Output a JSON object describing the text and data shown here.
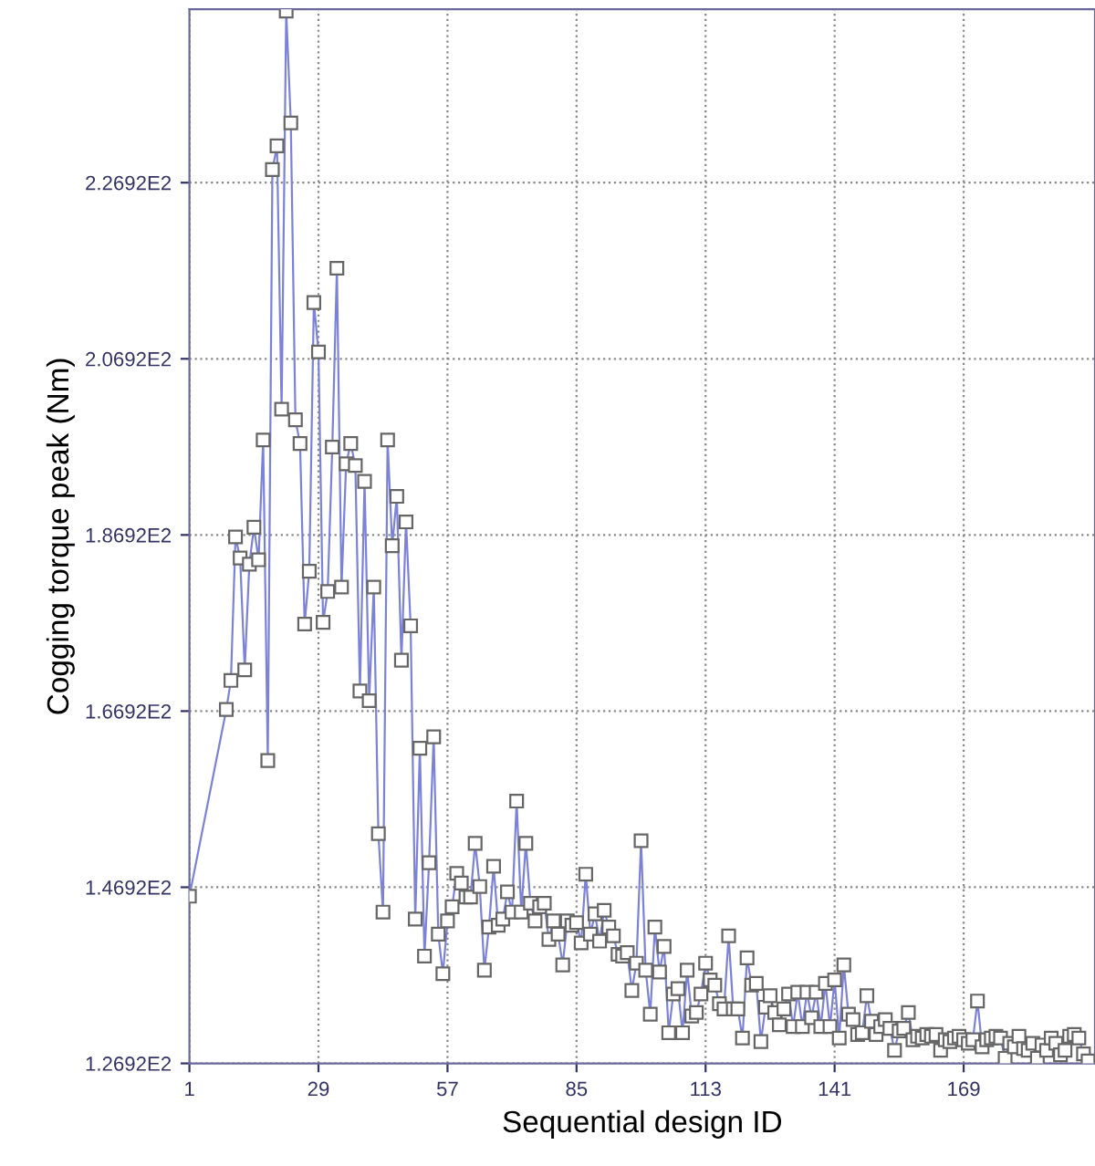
{
  "chart_data": {
    "type": "line",
    "xlabel": "Sequential design ID",
    "ylabel": "Cogging torque peak (Nm)",
    "xlim": [
      1,
      197.5
    ],
    "ylim": [
      126.92,
      246.6
    ],
    "xticks": [
      1,
      29,
      57,
      85,
      113,
      141,
      169
    ],
    "yticks": [
      {
        "value": 126.92,
        "label": "1.2692E2"
      },
      {
        "value": 146.92,
        "label": "1.4692E2"
      },
      {
        "value": 166.92,
        "label": "1.6692E2"
      },
      {
        "value": 186.92,
        "label": "1.8692E2"
      },
      {
        "value": 206.92,
        "label": "2.0692E2"
      },
      {
        "value": 226.92,
        "label": "2.2692E2"
      }
    ],
    "grid": true,
    "marker": "square",
    "line_style": "solid",
    "series": [
      {
        "color": "#7c82d8",
        "x": [
          1,
          9,
          10,
          11,
          12,
          13,
          14,
          15,
          16,
          17,
          18,
          19,
          20,
          21,
          22,
          23,
          24,
          25,
          26,
          27,
          28,
          29,
          30,
          31,
          32,
          33,
          34,
          35,
          36,
          37,
          38,
          39,
          40,
          41,
          42,
          43,
          44,
          45,
          46,
          47,
          48,
          49,
          50,
          51,
          52,
          53,
          54,
          55,
          56,
          57,
          58,
          59,
          60,
          61,
          62,
          63,
          64,
          65,
          66,
          67,
          68,
          69,
          70,
          71,
          72,
          73,
          74,
          75,
          76,
          77,
          78,
          79,
          80,
          81,
          82,
          83,
          84,
          85,
          86,
          87,
          88,
          89,
          90,
          91,
          92,
          93,
          94,
          95,
          96,
          97,
          98,
          99,
          100,
          101,
          102,
          103,
          104,
          105,
          106,
          107,
          108,
          109,
          110,
          111,
          112,
          113,
          114,
          115,
          116,
          117,
          118,
          119,
          120,
          121,
          122,
          123,
          124,
          125,
          126,
          127,
          128,
          129,
          130,
          131,
          132,
          133,
          134,
          135,
          136,
          137,
          138,
          139,
          140,
          141,
          142,
          143,
          144,
          145,
          146,
          147,
          148,
          149,
          150,
          151,
          152,
          153,
          154,
          155,
          156,
          157,
          158,
          159,
          160,
          161,
          162,
          163,
          164,
          165,
          166,
          167,
          168,
          169,
          170,
          171,
          172,
          173,
          174,
          175,
          176,
          177,
          178,
          179,
          180,
          181,
          182,
          183,
          184,
          185,
          186,
          187,
          188,
          189,
          190,
          191,
          192,
          193,
          194,
          195,
          196
        ],
        "values": [
          145.9,
          167.1,
          170.4,
          186.7,
          184.3,
          171.6,
          183.6,
          187.8,
          184.1,
          197.7,
          161.3,
          228.4,
          231.1,
          201.2,
          246.4,
          233.7,
          200,
          197.3,
          176.8,
          182.8,
          213.3,
          207.7,
          177,
          180.5,
          196.9,
          217.2,
          181,
          195,
          197.3,
          194.8,
          169.2,
          193,
          168.1,
          181,
          153,
          144.1,
          197.7,
          185.7,
          191.3,
          172.7,
          188.4,
          176.6,
          143.3,
          162.7,
          139.1,
          149.7,
          164,
          141.6,
          137.1,
          143.1,
          144.7,
          148.5,
          147.4,
          145.8,
          145.8,
          151.9,
          147,
          137.5,
          142.4,
          149.3,
          142.6,
          143.3,
          146.4,
          144.1,
          156.7,
          144.1,
          151.9,
          145.1,
          143.1,
          144.7,
          145.1,
          141,
          143.1,
          141.6,
          138.1,
          143.1,
          142.6,
          142.9,
          140.6,
          148.4,
          141.6,
          143.9,
          140.8,
          144.3,
          142.4,
          141.4,
          139.3,
          139.1,
          139.5,
          135.2,
          138.3,
          152.2,
          137.5,
          132.5,
          142.4,
          137.3,
          140.2,
          130.4,
          134.8,
          135.4,
          130.4,
          137.5,
          132.3,
          132.7,
          134.8,
          138.3,
          136.4,
          135.8,
          133.7,
          133.1,
          141.4,
          133.1,
          133.1,
          129.8,
          138.9,
          135.8,
          136,
          129.4,
          133.3,
          134.6,
          132.7,
          131.3,
          133.1,
          134.8,
          131.1,
          135,
          131.1,
          135,
          132.1,
          135,
          131.1,
          136,
          131.1,
          136.4,
          129.8,
          138.1,
          132.5,
          131.9,
          130.2,
          130.4,
          134.6,
          131.7,
          130.2,
          131.1,
          131.9,
          130.9,
          128.4,
          130.6,
          130.9,
          132.7,
          129.6,
          130,
          129.8,
          130.2,
          130,
          130.2,
          128.4,
          129.6,
          129.4,
          129.8,
          130,
          129.6,
          129.2,
          129.6,
          134,
          128.8,
          129.6,
          129.8,
          130,
          129.8,
          127.5,
          129.2,
          128.8,
          130,
          128.6,
          128.4,
          129.2,
          127.5,
          129,
          128.4,
          129.8,
          129.2,
          127.9,
          128.4,
          130,
          130.2,
          129.8,
          128,
          127.2
        ]
      }
    ]
  }
}
